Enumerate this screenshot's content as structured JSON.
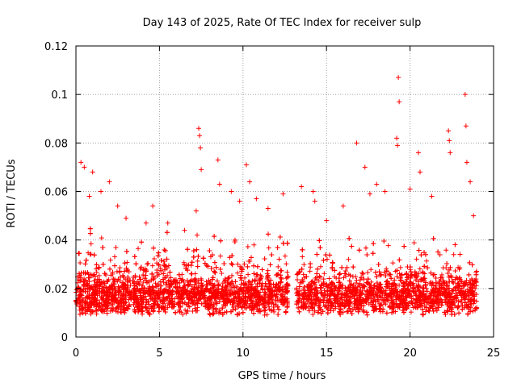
{
  "chart_data": {
    "type": "scatter",
    "title": "Day 143 of 2025, Rate Of TEC Index for receiver sulp",
    "xlabel": "GPS time / hours",
    "ylabel": "ROTI / TECUs",
    "xlim": [
      0,
      25
    ],
    "ylim": [
      0,
      0.12
    ],
    "x_ticks": [
      0,
      5,
      10,
      15,
      20,
      25
    ],
    "x_tick_labels": [
      "0",
      "5",
      "10",
      "15",
      "20",
      "25"
    ],
    "y_ticks": [
      0,
      0.02,
      0.04,
      0.06,
      0.08,
      0.1,
      0.12
    ],
    "y_tick_labels": [
      "0",
      "0.02",
      "0.04",
      "0.06",
      "0.08",
      "0.1",
      "0.12"
    ],
    "grid": true,
    "marker": "plus",
    "color": "#ff0000",
    "data_gap_hours": [
      12.7,
      13.2
    ],
    "series": [
      {
        "name": "ROTI",
        "points": [
          [
            0.3,
            0.072
          ],
          [
            0.5,
            0.07
          ],
          [
            0.8,
            0.058
          ],
          [
            1.0,
            0.068
          ],
          [
            1.5,
            0.06
          ],
          [
            2.0,
            0.064
          ],
          [
            2.5,
            0.054
          ],
          [
            3.0,
            0.049
          ],
          [
            4.2,
            0.047
          ],
          [
            4.6,
            0.054
          ],
          [
            5.5,
            0.047
          ],
          [
            6.5,
            0.044
          ],
          [
            7.2,
            0.052
          ],
          [
            7.35,
            0.086
          ],
          [
            7.4,
            0.083
          ],
          [
            7.45,
            0.078
          ],
          [
            7.5,
            0.069
          ],
          [
            8.5,
            0.073
          ],
          [
            8.6,
            0.063
          ],
          [
            9.3,
            0.06
          ],
          [
            9.8,
            0.056
          ],
          [
            10.2,
            0.071
          ],
          [
            10.4,
            0.064
          ],
          [
            10.8,
            0.057
          ],
          [
            11.5,
            0.053
          ],
          [
            12.4,
            0.059
          ],
          [
            13.5,
            0.062
          ],
          [
            14.2,
            0.06
          ],
          [
            14.3,
            0.056
          ],
          [
            15.0,
            0.048
          ],
          [
            16.0,
            0.054
          ],
          [
            16.8,
            0.08
          ],
          [
            17.3,
            0.07
          ],
          [
            17.6,
            0.059
          ],
          [
            18.0,
            0.063
          ],
          [
            18.5,
            0.06
          ],
          [
            19.2,
            0.082
          ],
          [
            19.25,
            0.079
          ],
          [
            19.3,
            0.107
          ],
          [
            19.35,
            0.097
          ],
          [
            20.0,
            0.061
          ],
          [
            20.5,
            0.076
          ],
          [
            20.6,
            0.068
          ],
          [
            21.3,
            0.058
          ],
          [
            22.3,
            0.085
          ],
          [
            22.35,
            0.081
          ],
          [
            22.4,
            0.076
          ],
          [
            23.3,
            0.1
          ],
          [
            23.35,
            0.087
          ],
          [
            23.4,
            0.072
          ],
          [
            23.6,
            0.064
          ],
          [
            23.8,
            0.05
          ]
        ]
      }
    ]
  }
}
